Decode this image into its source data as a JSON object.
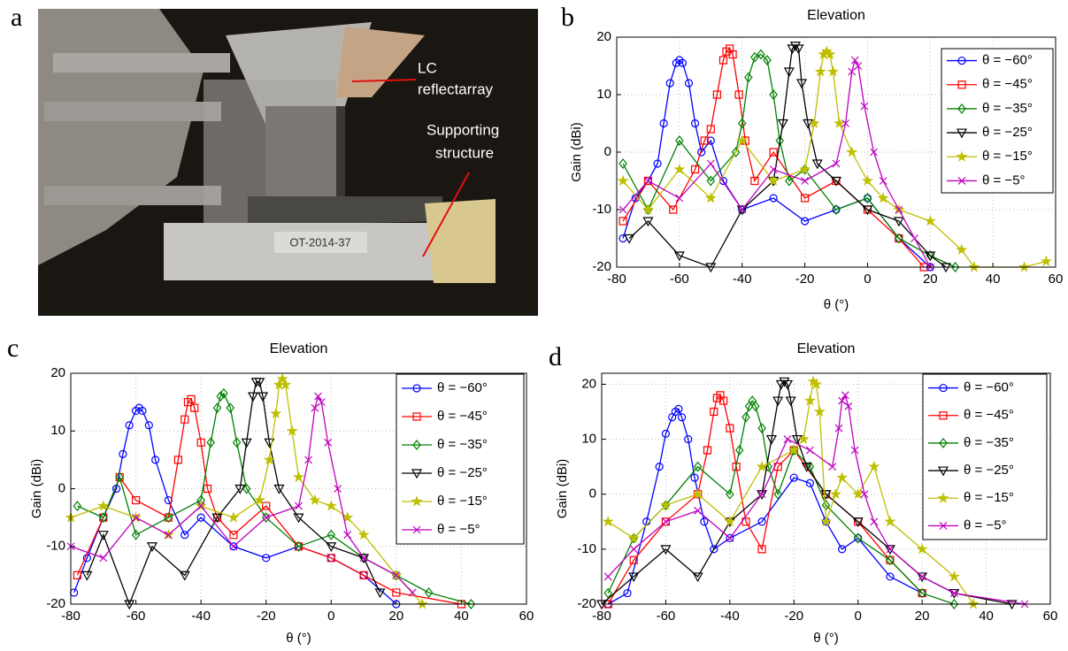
{
  "panel_labels": [
    "a",
    "b",
    "c",
    "d"
  ],
  "photo": {
    "annotations": [
      "LC",
      "reflectarray",
      "Supporting",
      "structure"
    ],
    "plate": "OT-2014-37"
  },
  "chart_data": [
    {
      "type": "line",
      "title": "Elevation",
      "xlabel": "θ (°)",
      "ylabel": "Gain (dBi)",
      "xlim": [
        -80,
        60
      ],
      "ylim": [
        -20,
        20
      ],
      "xticks": [
        -80,
        -60,
        -40,
        -20,
        0,
        20,
        40,
        60
      ],
      "yticks": [
        -20,
        -10,
        0,
        10,
        20
      ],
      "grid": true,
      "series": [
        {
          "name": "θ = −60°",
          "color": "#0000ff",
          "marker": "circle",
          "x": [
            -78,
            -74,
            -70,
            -67,
            -65,
            -63,
            -61,
            -60,
            -59,
            -57,
            -55,
            -53,
            -50,
            -46,
            -40,
            -30,
            -20,
            -10,
            0,
            10,
            20
          ],
          "values": [
            -15,
            -8,
            -5,
            -2,
            5,
            12,
            15.5,
            16,
            15.5,
            12,
            5,
            0,
            2,
            -5,
            -10,
            -8,
            -12,
            -10,
            -8,
            -15,
            -20
          ]
        },
        {
          "name": "θ = −45°",
          "color": "#ff0000",
          "marker": "square",
          "x": [
            -78,
            -70,
            -62,
            -55,
            -52,
            -50,
            -48,
            -46,
            -45,
            -44,
            -43,
            -41,
            -39,
            -36,
            -30,
            -20,
            -10,
            0,
            10,
            18
          ],
          "values": [
            -12,
            -5,
            -10,
            -3,
            2,
            4,
            10,
            16,
            17.5,
            18,
            17,
            10,
            2,
            -5,
            0,
            -8,
            -5,
            -10,
            -15,
            -20
          ]
        },
        {
          "name": "θ = −35°",
          "color": "#008000",
          "marker": "diamond",
          "x": [
            -78,
            -70,
            -60,
            -50,
            -42,
            -40,
            -38,
            -36,
            -34,
            -32,
            -30,
            -28,
            -25,
            -20,
            -10,
            0,
            10,
            20,
            28
          ],
          "values": [
            -2,
            -10,
            2,
            -5,
            0,
            5,
            13,
            16.5,
            17,
            16,
            10,
            2,
            -5,
            -3,
            -10,
            -8,
            -15,
            -18,
            -20
          ]
        },
        {
          "name": "θ = −25°",
          "color": "#000000",
          "marker": "tri",
          "x": [
            -76,
            -70,
            -60,
            -50,
            -40,
            -30,
            -27,
            -25,
            -24,
            -23,
            -22,
            -21,
            -19,
            -16,
            -10,
            0,
            10,
            20,
            25
          ],
          "values": [
            -15,
            -12,
            -18,
            -20,
            -10,
            -5,
            5,
            14,
            18,
            18.5,
            18,
            12,
            5,
            -2,
            -5,
            -10,
            -12,
            -18,
            -20
          ]
        },
        {
          "name": "θ = −15°",
          "color": "#bfbf00",
          "marker": "star",
          "x": [
            -78,
            -70,
            -60,
            -50,
            -40,
            -30,
            -20,
            -17,
            -15,
            -14,
            -13,
            -12,
            -11,
            -9,
            -5,
            0,
            5,
            10,
            20,
            30,
            34,
            50,
            57
          ],
          "values": [
            -5,
            -10,
            -3,
            -8,
            2,
            -5,
            -3,
            5,
            14,
            17,
            17.5,
            17,
            14,
            5,
            0,
            -5,
            -8,
            -10,
            -12,
            -17,
            -20,
            -20,
            -19
          ]
        },
        {
          "name": "θ = −5°",
          "color": "#bf00bf",
          "marker": "x",
          "x": [
            -78,
            -70,
            -60,
            -50,
            -40,
            -30,
            -20,
            -10,
            -7,
            -5,
            -4,
            -3,
            -1,
            2,
            5,
            10,
            15,
            20
          ],
          "values": [
            -10,
            -5,
            -8,
            -2,
            -10,
            -3,
            -5,
            -2,
            5,
            14,
            16,
            15,
            8,
            0,
            -5,
            -10,
            -15,
            -20
          ]
        }
      ]
    },
    {
      "type": "line",
      "title": "Elevation",
      "xlabel": "θ (°)",
      "ylabel": "Gain (dBi)",
      "xlim": [
        -80,
        60
      ],
      "ylim": [
        -20,
        20
      ],
      "xticks": [
        -80,
        -60,
        -40,
        -20,
        0,
        20,
        40,
        60
      ],
      "yticks": [
        -20,
        -10,
        0,
        10,
        20
      ],
      "grid": true,
      "series": [
        {
          "name": "θ = −60°",
          "color": "#0000ff",
          "marker": "circle",
          "x": [
            -79,
            -75,
            -70,
            -66,
            -64,
            -62,
            -60,
            -59,
            -58,
            -56,
            -54,
            -50,
            -45,
            -40,
            -30,
            -20,
            -10,
            0,
            10,
            20
          ],
          "values": [
            -18,
            -12,
            -5,
            0,
            6,
            11,
            13.5,
            14,
            13.5,
            11,
            5,
            -2,
            -8,
            -5,
            -10,
            -12,
            -10,
            -12,
            -15,
            -20
          ]
        },
        {
          "name": "θ = −45°",
          "color": "#ff0000",
          "marker": "square",
          "x": [
            -78,
            -70,
            -65,
            -60,
            -50,
            -47,
            -45,
            -44,
            -43,
            -42,
            -40,
            -38,
            -35,
            -30,
            -20,
            -10,
            0,
            10,
            20,
            40
          ],
          "values": [
            -15,
            -5,
            2,
            -2,
            -5,
            5,
            12,
            15,
            15.5,
            14,
            8,
            0,
            -5,
            -8,
            -3,
            -10,
            -12,
            -15,
            -18,
            -20
          ]
        },
        {
          "name": "θ = −35°",
          "color": "#008000",
          "marker": "diamond",
          "x": [
            -78,
            -70,
            -65,
            -60,
            -50,
            -40,
            -37,
            -35,
            -34,
            -33,
            -31,
            -29,
            -26,
            -20,
            -10,
            0,
            10,
            20,
            30,
            43
          ],
          "values": [
            -3,
            -5,
            2,
            -8,
            -5,
            -2,
            8,
            14,
            16,
            16.5,
            14,
            8,
            0,
            -5,
            -10,
            -8,
            -12,
            -15,
            -18,
            -20
          ]
        },
        {
          "name": "θ = −25°",
          "color": "#000000",
          "marker": "tri",
          "x": [
            -75,
            -70,
            -62,
            -55,
            -45,
            -35,
            -28,
            -26,
            -24,
            -23,
            -22,
            -21,
            -19,
            -16,
            -10,
            0,
            10,
            15
          ],
          "values": [
            -15,
            -8,
            -20,
            -10,
            -15,
            -5,
            0,
            8,
            16,
            18.5,
            18.5,
            16,
            8,
            0,
            -5,
            -10,
            -12,
            -18
          ]
        },
        {
          "name": "θ = −15°",
          "color": "#bfbf00",
          "marker": "star",
          "x": [
            -80,
            -70,
            -60,
            -50,
            -40,
            -30,
            -22,
            -19,
            -17,
            -16,
            -15,
            -14,
            -12,
            -10,
            -5,
            0,
            5,
            10,
            20,
            28
          ],
          "values": [
            -5,
            -3,
            -5,
            -8,
            -3,
            -5,
            -2,
            5,
            13,
            18,
            19,
            18,
            10,
            2,
            -2,
            -3,
            -5,
            -8,
            -15,
            -20
          ]
        },
        {
          "name": "θ = −5°",
          "color": "#bf00bf",
          "marker": "x",
          "x": [
            -80,
            -70,
            -60,
            -50,
            -40,
            -30,
            -20,
            -10,
            -7,
            -5,
            -4,
            -3,
            -1,
            2,
            5,
            10,
            20,
            25
          ],
          "values": [
            -10,
            -12,
            -5,
            -8,
            -3,
            -10,
            -5,
            -3,
            5,
            14,
            16,
            15,
            8,
            0,
            -8,
            -12,
            -15,
            -18
          ]
        }
      ]
    },
    {
      "type": "line",
      "title": "Elevation",
      "xlabel": "θ (°)",
      "ylabel": "Gain (dBi)",
      "xlim": [
        -80,
        60
      ],
      "ylim": [
        -20,
        22
      ],
      "xticks": [
        -80,
        -60,
        -40,
        -20,
        0,
        20,
        40,
        60
      ],
      "yticks": [
        -20,
        -10,
        0,
        10,
        20
      ],
      "grid": true,
      "series": [
        {
          "name": "θ = −60°",
          "color": "#0000ff",
          "marker": "circle",
          "x": [
            -78,
            -72,
            -66,
            -62,
            -60,
            -58,
            -57,
            -56,
            -55,
            -53,
            -51,
            -48,
            -45,
            -40,
            -30,
            -20,
            -15,
            -10,
            -5,
            0,
            10,
            20
          ],
          "values": [
            -20,
            -18,
            -5,
            5,
            11,
            14,
            15,
            15.5,
            14,
            10,
            3,
            -5,
            -10,
            -8,
            -5,
            3,
            2,
            -5,
            -10,
            -8,
            -15,
            -18
          ]
        },
        {
          "name": "θ = −45°",
          "color": "#ff0000",
          "marker": "square",
          "x": [
            -78,
            -70,
            -60,
            -50,
            -47,
            -45,
            -44,
            -43,
            -42,
            -40,
            -38,
            -35,
            -30,
            -25,
            -20,
            -10,
            0,
            10,
            20
          ],
          "values": [
            -20,
            -12,
            -5,
            0,
            8,
            15,
            17.5,
            18,
            17,
            12,
            5,
            -5,
            -10,
            5,
            8,
            0,
            -5,
            -12,
            -18
          ]
        },
        {
          "name": "θ = −35°",
          "color": "#008000",
          "marker": "diamond",
          "x": [
            -78,
            -70,
            -60,
            -50,
            -40,
            -37,
            -35,
            -34,
            -33,
            -32,
            -30,
            -28,
            -25,
            -20,
            -15,
            -10,
            0,
            10,
            20,
            30
          ],
          "values": [
            -18,
            -8,
            -2,
            5,
            0,
            8,
            14,
            16,
            17,
            16,
            12,
            5,
            0,
            8,
            5,
            -2,
            -8,
            -12,
            -18,
            -20
          ]
        },
        {
          "name": "θ = −25°",
          "color": "#000000",
          "marker": "tri",
          "x": [
            -80,
            -70,
            -60,
            -50,
            -40,
            -30,
            -27,
            -25,
            -24,
            -23,
            -22,
            -21,
            -19,
            -16,
            -10,
            0,
            10,
            20,
            30,
            48
          ],
          "values": [
            -20,
            -15,
            -10,
            -15,
            -5,
            0,
            10,
            17,
            20,
            20.5,
            20,
            17,
            10,
            5,
            0,
            -5,
            -10,
            -15,
            -18,
            -20
          ]
        },
        {
          "name": "θ = −15°",
          "color": "#bfbf00",
          "marker": "star",
          "x": [
            -78,
            -70,
            -60,
            -50,
            -40,
            -30,
            -20,
            -17,
            -15,
            -14,
            -13,
            -12,
            -10,
            -7,
            -5,
            0,
            5,
            10,
            20,
            30,
            36
          ],
          "values": [
            -5,
            -8,
            -2,
            0,
            -5,
            5,
            8,
            10,
            17,
            20.5,
            20,
            15,
            -5,
            0,
            3,
            0,
            5,
            -5,
            -10,
            -15,
            -20
          ]
        },
        {
          "name": "θ = −5°",
          "color": "#bf00bf",
          "marker": "x",
          "x": [
            -78,
            -70,
            -60,
            -50,
            -40,
            -30,
            -22,
            -15,
            -8,
            -6,
            -5,
            -4,
            -3,
            -1,
            2,
            5,
            10,
            20,
            30,
            52
          ],
          "values": [
            -15,
            -10,
            -5,
            -3,
            -8,
            0,
            10,
            8,
            5,
            12,
            17,
            18,
            16,
            8,
            0,
            -5,
            -10,
            -15,
            -18,
            -20
          ]
        }
      ]
    }
  ]
}
